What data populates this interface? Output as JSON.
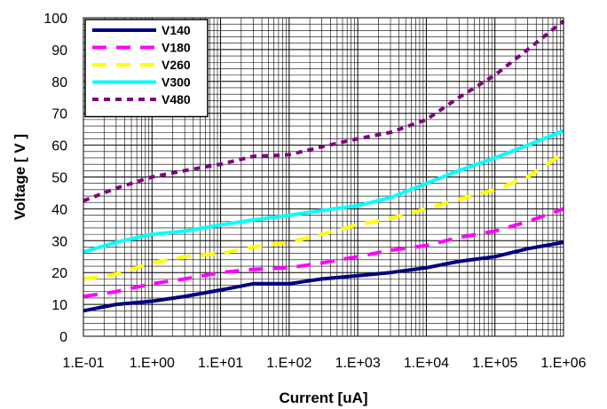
{
  "chart_data": {
    "type": "line",
    "title": "",
    "xlabel": "Current [uA]",
    "ylabel": "Voltage [ V ]",
    "xscale": "log",
    "xlim": [
      0.1,
      1000000
    ],
    "ylim": [
      0,
      100
    ],
    "x_tick_labels": [
      "1.E-01",
      "1.E+00",
      "1.E+01",
      "1.E+02",
      "1.E+03",
      "1.E+04",
      "1.E+05",
      "1.E+06"
    ],
    "y_ticks": [
      0,
      10,
      20,
      30,
      40,
      50,
      60,
      70,
      80,
      90,
      100
    ],
    "grid": true,
    "legend_position": "top-left",
    "series": [
      {
        "name": "V140",
        "color": "#000080",
        "style": "solid",
        "x": [
          0.1,
          0.3,
          1,
          3,
          10,
          30,
          100,
          300,
          1000,
          3000,
          10000,
          30000,
          100000,
          300000,
          1000000
        ],
        "y": [
          8,
          10,
          11,
          12.5,
          14.5,
          16.5,
          16.5,
          18,
          19,
          20,
          21.5,
          23.5,
          25,
          27.5,
          29.5
        ]
      },
      {
        "name": "V180",
        "color": "#FF00FF",
        "style": "dashed",
        "x": [
          0.1,
          0.3,
          1,
          3,
          10,
          30,
          100,
          300,
          1000,
          3000,
          10000,
          30000,
          100000,
          300000,
          1000000
        ],
        "y": [
          12.5,
          14,
          16.5,
          18,
          20,
          21,
          21.5,
          23,
          25,
          27,
          28.5,
          31,
          33,
          36,
          40
        ]
      },
      {
        "name": "V260",
        "color": "#FFFF00",
        "style": "dashed",
        "x": [
          0.1,
          0.3,
          1,
          3,
          10,
          30,
          100,
          300,
          1000,
          3000,
          10000,
          30000,
          100000,
          300000,
          1000000
        ],
        "y": [
          18,
          19.5,
          23,
          25,
          26,
          28,
          29.5,
          32,
          35,
          37,
          40,
          43,
          46,
          50,
          57.5
        ]
      },
      {
        "name": "V300",
        "color": "#00FFFF",
        "style": "solid",
        "x": [
          0.1,
          0.3,
          1,
          3,
          10,
          30,
          100,
          300,
          1000,
          3000,
          10000,
          30000,
          100000,
          300000,
          1000000
        ],
        "y": [
          26.5,
          29.5,
          32,
          33,
          35,
          36.5,
          38,
          39.5,
          41,
          43.5,
          48,
          52,
          56,
          60,
          64.5
        ]
      },
      {
        "name": "V480",
        "color": "#800080",
        "style": "dotted",
        "x": [
          0.1,
          0.3,
          1,
          3,
          10,
          30,
          100,
          300,
          1000,
          3000,
          10000,
          30000,
          100000,
          300000,
          1000000
        ],
        "y": [
          42.5,
          46.5,
          50,
          52,
          54,
          56.5,
          57,
          59.5,
          62,
          64,
          68,
          75,
          82,
          90,
          99
        ]
      }
    ]
  }
}
